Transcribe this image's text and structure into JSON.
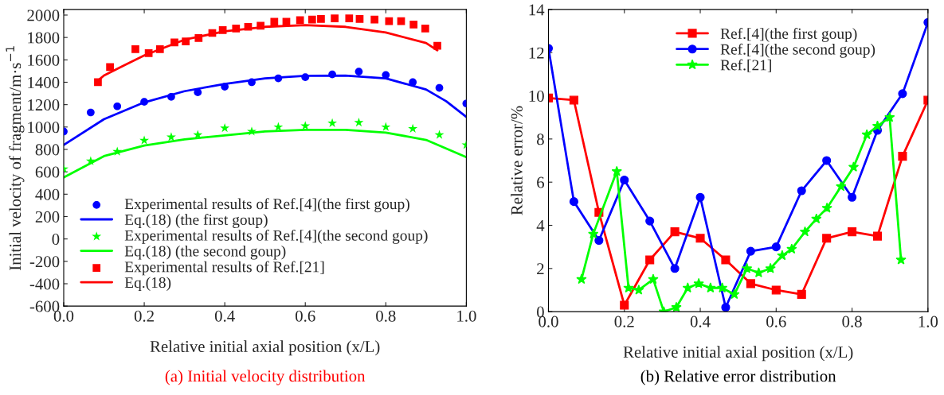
{
  "chart_data": [
    {
      "type": "line",
      "xlabel": "Relative initial axial position (x/L)",
      "ylabel": "Initial velocity of fragment/m·s$^{−1}$",
      "xlim": [
        0,
        1
      ],
      "ylim": [
        -600,
        2050
      ],
      "xticks": [
        {
          "value": 0,
          "label": "0.0"
        },
        {
          "value": 0.2,
          "label": "0.2"
        },
        {
          "value": 0.4,
          "label": "0.4"
        },
        {
          "value": 0.6,
          "label": "0.6"
        },
        {
          "value": 0.8,
          "label": "0.8"
        },
        {
          "value": 1,
          "label": "1.0"
        }
      ],
      "yticks": [
        -600,
        -400,
        -200,
        0,
        200,
        400,
        600,
        800,
        1000,
        1200,
        1400,
        1600,
        1800,
        2000
      ],
      "legend": "bottom left",
      "grid": false,
      "annotations": [
        "(a) Initial velocity distribution"
      ],
      "series": [
        {
          "name": "Experimental results of Ref.[4](the first goup)",
          "type": "scatter",
          "marker": "circle",
          "color": "#0000ff",
          "x": [
            0,
            0.067,
            0.133,
            0.2,
            0.267,
            0.333,
            0.4,
            0.467,
            0.533,
            0.6,
            0.667,
            0.733,
            0.8,
            0.867,
            0.933,
            1.0
          ],
          "values": [
            960,
            1130,
            1185,
            1225,
            1270,
            1310,
            1360,
            1400,
            1435,
            1445,
            1470,
            1495,
            1465,
            1400,
            1350,
            1210
          ]
        },
        {
          "name": "Eq.(18) (the first goup)",
          "type": "line",
          "marker": "none",
          "color": "#0000ff",
          "x": [
            0,
            0.1,
            0.2,
            0.3,
            0.4,
            0.5,
            0.6,
            0.7,
            0.8,
            0.9,
            0.95,
            1.0
          ],
          "values": [
            840,
            1070,
            1220,
            1320,
            1385,
            1435,
            1458,
            1460,
            1435,
            1335,
            1230,
            1090
          ]
        },
        {
          "name": "Experimental results of Ref.[4](the second goup)",
          "type": "scatter",
          "marker": "star",
          "color": "#00ff00",
          "x": [
            0,
            0.067,
            0.133,
            0.2,
            0.267,
            0.333,
            0.4,
            0.467,
            0.533,
            0.6,
            0.667,
            0.733,
            0.8,
            0.867,
            0.933,
            1.0
          ],
          "values": [
            625,
            695,
            780,
            880,
            910,
            930,
            990,
            960,
            1000,
            1010,
            1035,
            1040,
            1000,
            985,
            930,
            840
          ]
        },
        {
          "name": "Eq.(18) (the second goup)",
          "type": "line",
          "marker": "none",
          "color": "#00ff00",
          "x": [
            0,
            0.1,
            0.2,
            0.3,
            0.4,
            0.5,
            0.6,
            0.7,
            0.8,
            0.9,
            1.0
          ],
          "values": [
            550,
            740,
            835,
            890,
            925,
            960,
            975,
            975,
            950,
            885,
            730
          ]
        },
        {
          "name": "Experimental results of Ref.[21]",
          "type": "scatter",
          "marker": "square",
          "color": "#ff0000",
          "x": [
            0.085,
            0.115,
            0.178,
            0.211,
            0.239,
            0.275,
            0.303,
            0.335,
            0.369,
            0.395,
            0.428,
            0.458,
            0.489,
            0.523,
            0.553,
            0.587,
            0.617,
            0.639,
            0.673,
            0.709,
            0.735,
            0.772,
            0.808,
            0.838,
            0.869,
            0.898,
            0.928
          ],
          "values": [
            1400,
            1535,
            1695,
            1660,
            1695,
            1755,
            1765,
            1795,
            1840,
            1865,
            1880,
            1895,
            1905,
            1940,
            1940,
            1955,
            1960,
            1965,
            1970,
            1970,
            1965,
            1960,
            1945,
            1945,
            1915,
            1880,
            1725
          ]
        },
        {
          "name": "Eq.(18)",
          "type": "line",
          "marker": "none",
          "color": "#ff0000",
          "x": [
            0.085,
            0.1,
            0.15,
            0.2,
            0.3,
            0.4,
            0.5,
            0.6,
            0.7,
            0.8,
            0.9,
            0.928
          ],
          "values": [
            1415,
            1460,
            1550,
            1640,
            1780,
            1855,
            1895,
            1910,
            1895,
            1845,
            1750,
            1685
          ]
        }
      ]
    },
    {
      "type": "line",
      "xlabel": "Relative initial axial position (x/L)",
      "ylabel": "Relative error/%",
      "xlim": [
        0,
        1
      ],
      "ylim": [
        0,
        14
      ],
      "xticks": [
        {
          "value": 0,
          "label": "0.0"
        },
        {
          "value": 0.2,
          "label": "0.2"
        },
        {
          "value": 0.4,
          "label": "0.4"
        },
        {
          "value": 0.6,
          "label": "0.6"
        },
        {
          "value": 0.8,
          "label": "0.8"
        },
        {
          "value": 1,
          "label": "1.0"
        }
      ],
      "yticks": [
        0,
        2,
        4,
        6,
        8,
        10,
        12,
        14
      ],
      "legend": "top",
      "grid": false,
      "line_style": "solid",
      "annotations": [
        "(b) Relative error distribution"
      ],
      "series": [
        {
          "name": "Ref.[4](the first goup)",
          "marker": "square",
          "color": "#ff0000",
          "x": [
            0,
            0.067,
            0.133,
            0.2,
            0.267,
            0.333,
            0.4,
            0.467,
            0.533,
            0.6,
            0.667,
            0.733,
            0.8,
            0.867,
            0.933,
            1.0
          ],
          "values": [
            9.9,
            9.8,
            4.6,
            0.3,
            2.4,
            3.7,
            3.4,
            2.4,
            1.3,
            1.0,
            0.8,
            3.4,
            3.7,
            3.5,
            7.2,
            9.8
          ]
        },
        {
          "name": "Ref.[4](the second goup)",
          "marker": "circle",
          "color": "#0000ff",
          "x": [
            0,
            0.067,
            0.133,
            0.2,
            0.267,
            0.333,
            0.4,
            0.467,
            0.533,
            0.6,
            0.667,
            0.733,
            0.8,
            0.867,
            0.933,
            1.0
          ],
          "values": [
            12.2,
            5.1,
            3.3,
            6.1,
            4.2,
            2.0,
            5.3,
            0.2,
            2.8,
            3.0,
            5.6,
            7.0,
            5.3,
            8.4,
            10.1,
            13.4
          ]
        },
        {
          "name": "Ref.[21]",
          "marker": "star",
          "color": "#00ff00",
          "x": [
            0.087,
            0.118,
            0.18,
            0.211,
            0.238,
            0.276,
            0.304,
            0.337,
            0.367,
            0.396,
            0.427,
            0.458,
            0.49,
            0.523,
            0.554,
            0.585,
            0.616,
            0.641,
            0.676,
            0.706,
            0.734,
            0.771,
            0.804,
            0.839,
            0.867,
            0.899,
            0.929
          ],
          "values": [
            1.5,
            3.6,
            6.5,
            1.1,
            1.0,
            1.5,
            0.0,
            0.2,
            1.1,
            1.3,
            1.1,
            1.1,
            0.8,
            2.0,
            1.8,
            2.0,
            2.6,
            2.9,
            3.7,
            4.3,
            4.8,
            5.8,
            6.7,
            8.2,
            8.6,
            9.0,
            2.4
          ]
        }
      ]
    }
  ]
}
